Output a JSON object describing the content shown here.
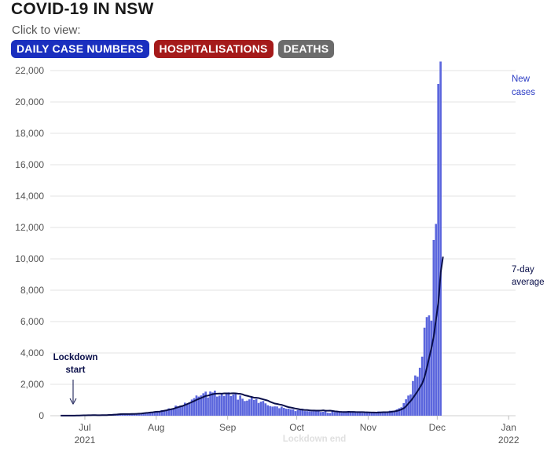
{
  "header": {
    "title": "COVID-19 IN NSW",
    "subtitle": "Click to view:",
    "buttons": {
      "cases": "DAILY CASE NUMBERS",
      "hospitalisations": "HOSPITALISATIONS",
      "deaths": "DEATHS"
    }
  },
  "colors": {
    "cases_button": "#1a2fbf",
    "hosp_button": "#a51a1a",
    "deaths_button": "#6b6b6b",
    "bars": "#5b66dd",
    "average_line": "#0a0f4a",
    "annotation_blue": "#2b3cc4"
  },
  "chart_data": {
    "type": "bar",
    "ylim": [
      0,
      22500
    ],
    "yticks": [
      0,
      2000,
      4000,
      6000,
      8000,
      10000,
      12000,
      14000,
      16000,
      18000,
      20000,
      22000
    ],
    "ytick_labels": [
      "0",
      "2,000",
      "4,000",
      "6,000",
      "8,000",
      "10,000",
      "12,000",
      "14,000",
      "16,000",
      "18,000",
      "20,000",
      "22,000"
    ],
    "x_start": "2021-06-16",
    "x_end": "2022-01-04",
    "xticks": [
      {
        "date": "2021-07-01",
        "label": "Jul",
        "sublabel": "2021"
      },
      {
        "date": "2021-08-01",
        "label": "Aug",
        "sublabel": ""
      },
      {
        "date": "2021-09-01",
        "label": "Sep",
        "sublabel": ""
      },
      {
        "date": "2021-10-01",
        "label": "Oct",
        "sublabel": ""
      },
      {
        "date": "2021-11-01",
        "label": "Nov",
        "sublabel": ""
      },
      {
        "date": "2021-12-01",
        "label": "Dec",
        "sublabel": ""
      },
      {
        "date": "2022-01-01",
        "label": "Jan",
        "sublabel": "2022"
      }
    ],
    "series": [
      {
        "name": "New cases",
        "x_start": "2021-06-20",
        "values": [
          4,
          3,
          8,
          5,
          7,
          10,
          15,
          24,
          28,
          29,
          35,
          22,
          40,
          25,
          38,
          35,
          31,
          27,
          44,
          38,
          45,
          65,
          77,
          112,
          89,
          97,
          111,
          105,
          78,
          98,
          110,
          136,
          124,
          141,
          163,
          172,
          199,
          177,
          170,
          239,
          233,
          262,
          291,
          283,
          356,
          319,
          345,
          466,
          390,
          415,
          644,
          598,
          642,
          633,
          830,
          760,
          818,
          1030,
          1118,
          1288,
          1218,
          1290,
          1431,
          1533,
          1164,
          1542,
          1480,
          1599,
          1220,
          1281,
          1405,
          1262,
          1431,
          1484,
          1257,
          1351,
          1405,
          1022,
          1288,
          1083,
          935,
          961,
          1043,
          1220,
          1007,
          1063,
          813,
          894,
          938,
          787,
          667,
          612,
          580,
          594,
          587,
          477,
          580,
          496,
          444,
          445,
          406,
          399,
          294,
          360,
          360,
          443,
          295,
          293,
          282,
          273,
          288,
          308,
          325,
          236,
          249,
          308,
          187,
          173,
          278,
          222,
          271,
          216,
          191,
          260,
          248,
          202,
          222,
          251,
          208,
          193,
          236,
          173,
          245,
          177,
          184,
          167,
          222,
          180,
          272,
          261,
          215,
          233,
          253,
          317,
          318,
          260,
          403,
          476,
          536,
          804,
          1046,
          1284,
          1360,
          2213,
          2566,
          2482,
          3057,
          3763,
          5612,
          6288,
          6394,
          6062,
          11201,
          12226,
          21151,
          22577
        ]
      },
      {
        "name": "7-day average",
        "x_start": "2021-06-20",
        "values": [
          4,
          4,
          5,
          5,
          5,
          6,
          7,
          11,
          14,
          17,
          22,
          24,
          30,
          32,
          35,
          36,
          34,
          34,
          35,
          35,
          39,
          47,
          53,
          64,
          72,
          88,
          101,
          105,
          107,
          109,
          108,
          112,
          114,
          120,
          129,
          139,
          157,
          173,
          185,
          205,
          221,
          242,
          256,
          262,
          290,
          318,
          343,
          383,
          411,
          444,
          501,
          542,
          587,
          624,
          682,
          748,
          809,
          868,
          937,
          1012,
          1074,
          1131,
          1196,
          1264,
          1283,
          1328,
          1371,
          1398,
          1406,
          1410,
          1409,
          1427,
          1426,
          1419,
          1422,
          1431,
          1428,
          1405,
          1395,
          1358,
          1298,
          1267,
          1228,
          1193,
          1147,
          1142,
          1126,
          1082,
          1040,
          999,
          961,
          883,
          829,
          773,
          749,
          716,
          690,
          639,
          588,
          545,
          517,
          488,
          454,
          430,
          400,
          382,
          364,
          360,
          343,
          332,
          329,
          325,
          328,
          327,
          341,
          318,
          317,
          322,
          304,
          283,
          269,
          248,
          241,
          239,
          238,
          249,
          246,
          246,
          237,
          232,
          230,
          230,
          223,
          221,
          215,
          209,
          205,
          203,
          204,
          214,
          222,
          223,
          229,
          239,
          259,
          280,
          306,
          347,
          404,
          476,
          608,
          780,
          946,
          1136,
          1351,
          1569,
          1805,
          2065,
          2470,
          3057,
          3710,
          4337,
          5075,
          6186,
          7254,
          9125,
          10138
        ]
      }
    ],
    "annotations": [
      {
        "text_lines": [
          "New",
          "cases"
        ],
        "color": "#2b3cc4"
      },
      {
        "text_lines": [
          "7-day",
          "average"
        ],
        "color": "#0a0f4a"
      },
      {
        "text_lines": [
          "Lockdown",
          "start"
        ],
        "color": "#0a0f4a"
      },
      {
        "text_lines": [
          "Lockdown end"
        ],
        "color": "#e0e0e0"
      }
    ]
  }
}
